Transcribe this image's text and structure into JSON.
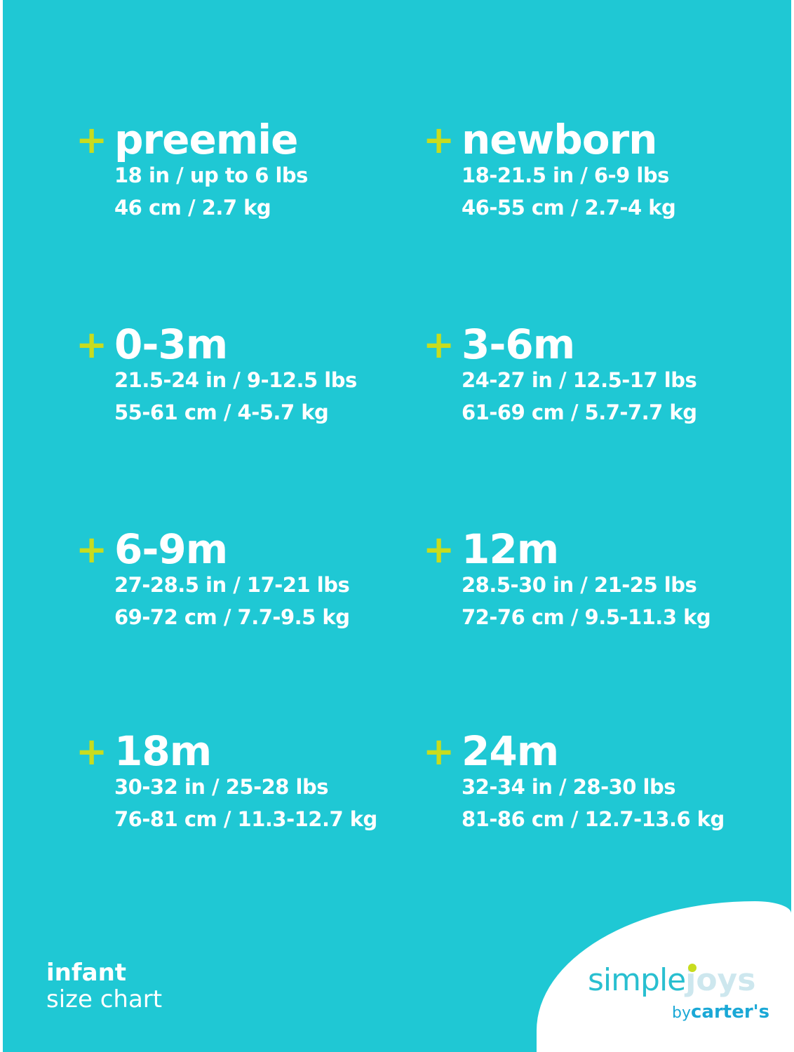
{
  "colors": {
    "background": "#1fc8d4",
    "plus": "#c8dc1e",
    "text": "#ffffff"
  },
  "plus_icon": "+",
  "sizes": [
    {
      "name": "preemie",
      "imperial": "18 in / up to 6 lbs",
      "metric": "46 cm / 2.7 kg"
    },
    {
      "name": "newborn",
      "imperial": "18-21.5 in / 6-9 lbs",
      "metric": "46-55 cm / 2.7-4 kg"
    },
    {
      "name": "0-3m",
      "imperial": "21.5-24 in / 9-12.5 lbs",
      "metric": "55-61 cm / 4-5.7 kg"
    },
    {
      "name": "3-6m",
      "imperial": "24-27 in / 12.5-17 lbs",
      "metric": "61-69 cm / 5.7-7.7 kg"
    },
    {
      "name": "6-9m",
      "imperial": "27-28.5 in / 17-21 lbs",
      "metric": "69-72 cm / 7.7-9.5 kg"
    },
    {
      "name": "12m",
      "imperial": "28.5-30 in / 21-25 lbs",
      "metric": "72-76 cm / 9.5-11.3 kg"
    },
    {
      "name": "18m",
      "imperial": "30-32 in / 25-28 lbs",
      "metric": "76-81 cm / 11.3-12.7 kg"
    },
    {
      "name": "24m",
      "imperial": "32-34 in / 28-30 lbs",
      "metric": "81-86 cm / 12.7-13.6 kg"
    }
  ],
  "footer": {
    "line1": "infant",
    "line2": "size chart"
  },
  "logo": {
    "simple": "simple",
    "joys": "joys",
    "by": "by",
    "brand": "carter's"
  }
}
